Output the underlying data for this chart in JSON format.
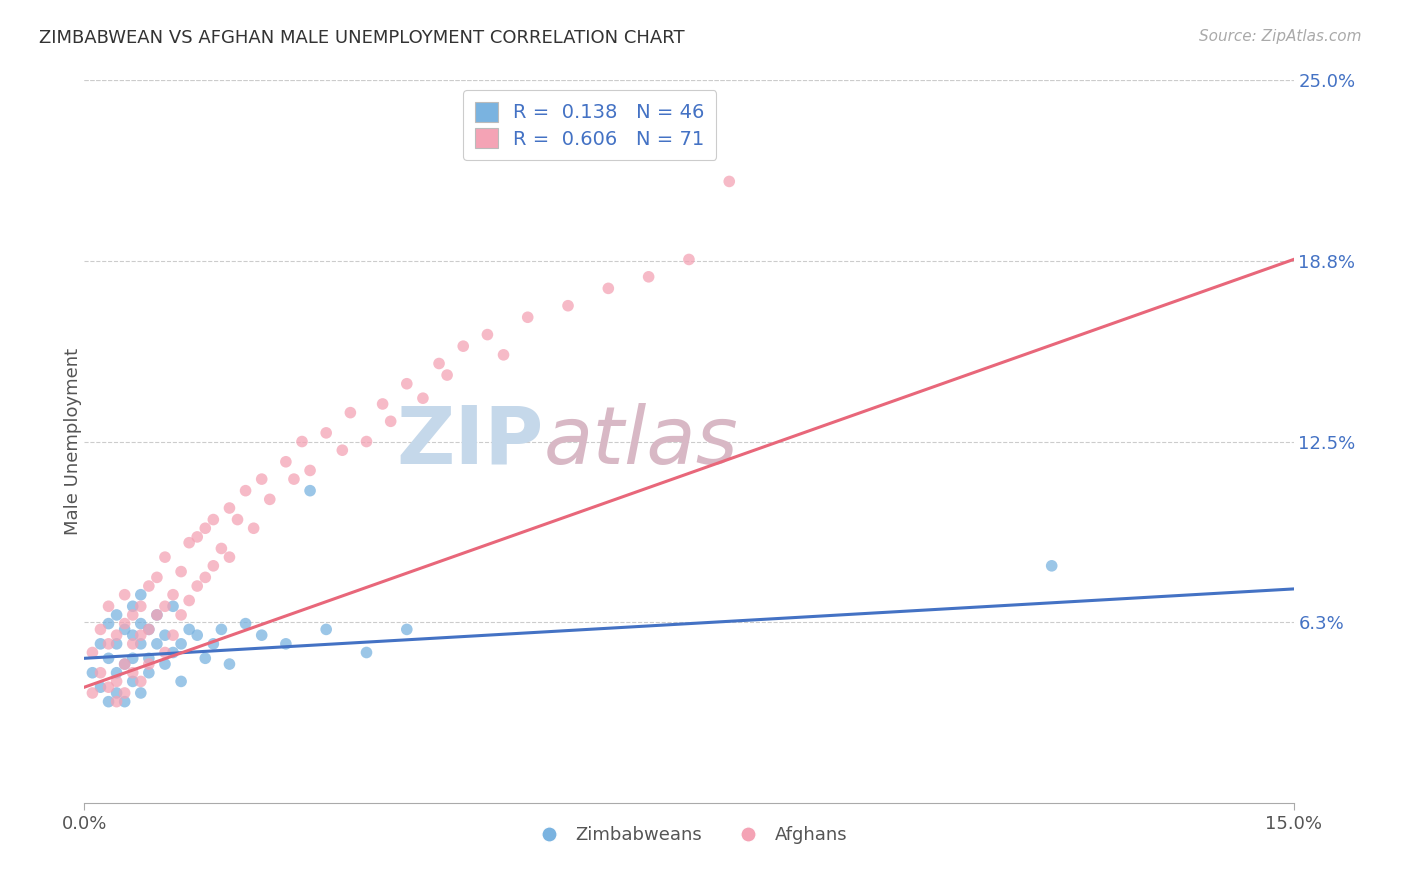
{
  "title": "ZIMBABWEAN VS AFGHAN MALE UNEMPLOYMENT CORRELATION CHART",
  "source_text": "Source: ZipAtlas.com",
  "ylabel": "Male Unemployment",
  "xlim": [
    0.0,
    0.15
  ],
  "ylim": [
    0.0,
    0.25
  ],
  "xticks": [
    0.0,
    0.15
  ],
  "xtick_labels": [
    "0.0%",
    "15.0%"
  ],
  "ytick_positions": [
    0.0625,
    0.125,
    0.1875,
    0.25
  ],
  "ytick_labels": [
    "6.3%",
    "12.5%",
    "18.8%",
    "25.0%"
  ],
  "zimbabwe_color": "#7ab3e0",
  "afghan_color": "#f4a3b5",
  "trend_zimbabwe_color": "#4472c4",
  "trend_afghan_color": "#e8677a",
  "zimbabwe_R": 0.138,
  "zimbabwe_N": 46,
  "afghan_R": 0.606,
  "afghan_N": 71,
  "legend_top_label1": "R =  0.138   N = 46",
  "legend_top_label2": "R =  0.606   N = 71",
  "legend_zimbabweans": "Zimbabweans",
  "legend_afghans": "Afghans",
  "background_color": "#ffffff",
  "grid_color": "#cccccc",
  "watermark_zip": "ZIP",
  "watermark_atlas": "atlas",
  "zimbabwe_scatter_x": [
    0.001,
    0.002,
    0.002,
    0.003,
    0.003,
    0.003,
    0.004,
    0.004,
    0.004,
    0.004,
    0.005,
    0.005,
    0.005,
    0.006,
    0.006,
    0.006,
    0.006,
    0.007,
    0.007,
    0.007,
    0.007,
    0.008,
    0.008,
    0.008,
    0.009,
    0.009,
    0.01,
    0.01,
    0.011,
    0.011,
    0.012,
    0.012,
    0.013,
    0.014,
    0.015,
    0.016,
    0.017,
    0.018,
    0.02,
    0.022,
    0.025,
    0.028,
    0.03,
    0.035,
    0.04,
    0.12
  ],
  "zimbabwe_scatter_y": [
    0.045,
    0.04,
    0.055,
    0.035,
    0.05,
    0.062,
    0.045,
    0.055,
    0.065,
    0.038,
    0.048,
    0.06,
    0.035,
    0.05,
    0.058,
    0.068,
    0.042,
    0.055,
    0.062,
    0.072,
    0.038,
    0.05,
    0.06,
    0.045,
    0.055,
    0.065,
    0.048,
    0.058,
    0.052,
    0.068,
    0.055,
    0.042,
    0.06,
    0.058,
    0.05,
    0.055,
    0.06,
    0.048,
    0.062,
    0.058,
    0.055,
    0.108,
    0.06,
    0.052,
    0.06,
    0.082
  ],
  "afghan_scatter_x": [
    0.001,
    0.001,
    0.002,
    0.002,
    0.003,
    0.003,
    0.003,
    0.004,
    0.004,
    0.004,
    0.005,
    0.005,
    0.005,
    0.005,
    0.006,
    0.006,
    0.006,
    0.007,
    0.007,
    0.007,
    0.008,
    0.008,
    0.008,
    0.009,
    0.009,
    0.01,
    0.01,
    0.01,
    0.011,
    0.011,
    0.012,
    0.012,
    0.013,
    0.013,
    0.014,
    0.014,
    0.015,
    0.015,
    0.016,
    0.016,
    0.017,
    0.018,
    0.018,
    0.019,
    0.02,
    0.021,
    0.022,
    0.023,
    0.025,
    0.026,
    0.027,
    0.028,
    0.03,
    0.032,
    0.033,
    0.035,
    0.037,
    0.038,
    0.04,
    0.042,
    0.044,
    0.045,
    0.047,
    0.05,
    0.052,
    0.055,
    0.06,
    0.065,
    0.07,
    0.075,
    0.08
  ],
  "afghan_scatter_y": [
    0.038,
    0.052,
    0.045,
    0.06,
    0.04,
    0.055,
    0.068,
    0.042,
    0.058,
    0.035,
    0.048,
    0.062,
    0.072,
    0.038,
    0.055,
    0.065,
    0.045,
    0.058,
    0.068,
    0.042,
    0.06,
    0.075,
    0.048,
    0.065,
    0.078,
    0.052,
    0.068,
    0.085,
    0.058,
    0.072,
    0.065,
    0.08,
    0.07,
    0.09,
    0.075,
    0.092,
    0.078,
    0.095,
    0.082,
    0.098,
    0.088,
    0.102,
    0.085,
    0.098,
    0.108,
    0.095,
    0.112,
    0.105,
    0.118,
    0.112,
    0.125,
    0.115,
    0.128,
    0.122,
    0.135,
    0.125,
    0.138,
    0.132,
    0.145,
    0.14,
    0.152,
    0.148,
    0.158,
    0.162,
    0.155,
    0.168,
    0.172,
    0.178,
    0.182,
    0.188,
    0.215
  ]
}
